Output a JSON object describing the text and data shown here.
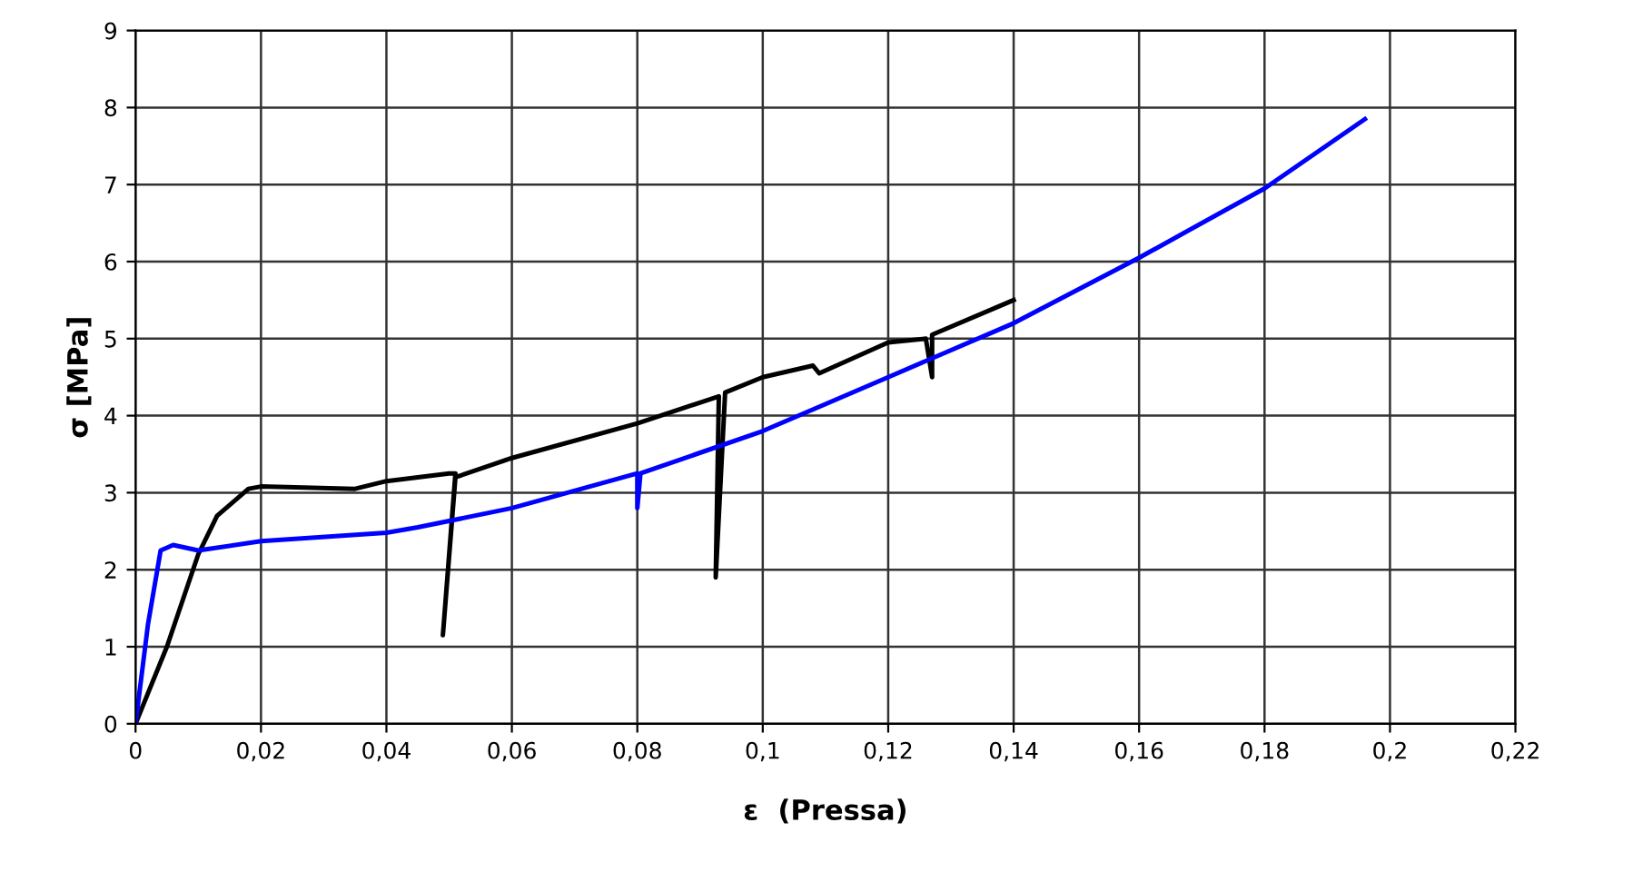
{
  "chart_data": {
    "type": "line",
    "xlabel": "ε  (Pressa)",
    "ylabel": "σ [MPa]",
    "xlim": [
      0,
      0.22
    ],
    "ylim": [
      0,
      9
    ],
    "xticks": [
      0,
      {
        "value": 0.02,
        "label": "0,02"
      },
      {
        "value": 0.04,
        "label": "0,04"
      },
      {
        "value": 0.06,
        "label": "0,06"
      },
      {
        "value": 0.08,
        "label": "0,08"
      },
      {
        "value": 0.1,
        "label": "0,1"
      },
      {
        "value": 0.12,
        "label": "0,12"
      },
      {
        "value": 0.14,
        "label": "0,14"
      },
      {
        "value": 0.16,
        "label": "0,16"
      },
      {
        "value": 0.18,
        "label": "0,18"
      },
      {
        "value": 0.2,
        "label": "0,2"
      },
      {
        "value": 0.22,
        "label": "0,22"
      }
    ],
    "yticks": [
      0,
      1,
      2,
      3,
      4,
      5,
      6,
      7,
      8,
      9
    ],
    "grid": true,
    "marker": "none",
    "line_style": "solid",
    "series": [
      {
        "color": "#000000",
        "x": [
          0,
          0.005,
          0.01,
          0.013,
          0.018,
          0.02,
          0.035,
          0.04,
          0.05,
          0.051,
          0.049,
          0.051,
          0.06,
          0.08,
          0.093,
          0.0925,
          0.094,
          0.1,
          0.108,
          0.109,
          0.12,
          0.126,
          0.127,
          0.127,
          0.14
        ],
        "values": [
          0,
          1.0,
          2.2,
          2.7,
          3.05,
          3.08,
          3.05,
          3.15,
          3.25,
          3.25,
          1.15,
          3.2,
          3.45,
          3.9,
          4.25,
          1.9,
          4.3,
          4.5,
          4.65,
          4.55,
          4.95,
          5.0,
          4.5,
          5.05,
          5.5
        ]
      },
      {
        "color": "#0000ff",
        "x": [
          0,
          0.002,
          0.004,
          0.006,
          0.01,
          0.02,
          0.04,
          0.045,
          0.06,
          0.08,
          0.08,
          0.0805,
          0.1,
          0.12,
          0.14,
          0.16,
          0.18,
          0.196
        ],
        "values": [
          0,
          1.3,
          2.25,
          2.32,
          2.25,
          2.37,
          2.48,
          2.55,
          2.8,
          3.25,
          2.8,
          3.25,
          3.8,
          4.5,
          5.2,
          6.05,
          6.95,
          7.85
        ]
      }
    ]
  }
}
